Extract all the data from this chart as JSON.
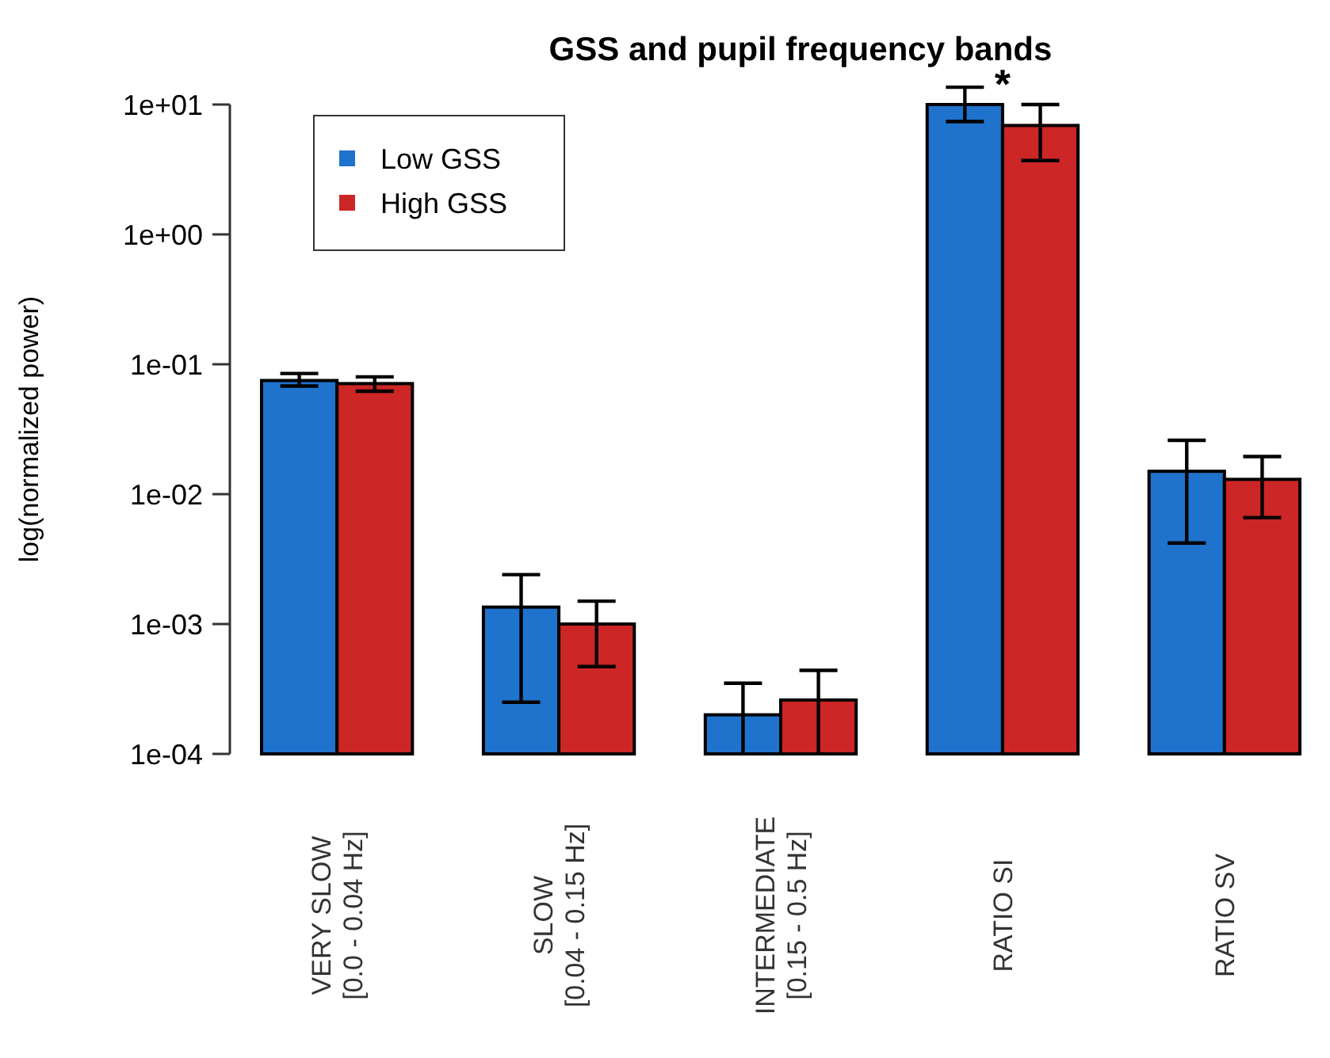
{
  "chart_data": {
    "type": "bar",
    "title": "GSS and pupil frequency bands",
    "ylabel": "log(normalized power)",
    "categories": [
      "VERY SLOW\n[0.0 - 0.04 Hz]",
      "SLOW\n[0.04 - 0.15 Hz]",
      "INTERMEDIATE\n[0.15 - 0.5 Hz]",
      "RATIO SI",
      "RATIO SV"
    ],
    "series": [
      {
        "name": "Low GSS",
        "color": "#1f73cc",
        "values": [
          0.075,
          0.00135,
          0.0002,
          10,
          0.015
        ],
        "errors": [
          [
            0.068,
            0.085
          ],
          [
            0.00025,
            0.0024
          ],
          [
            0.0001,
            0.00035
          ],
          [
            7.4,
            13.6
          ],
          [
            0.0042,
            0.026
          ]
        ]
      },
      {
        "name": "High GSS",
        "color": "#cc2626",
        "values": [
          0.071,
          0.001,
          0.00026,
          6.9,
          0.013
        ],
        "errors": [
          [
            0.062,
            0.08
          ],
          [
            0.00047,
            0.0015
          ],
          [
            0.0001,
            0.00044
          ],
          [
            3.7,
            10
          ],
          [
            0.0066,
            0.0195
          ]
        ]
      }
    ],
    "log": true,
    "ylim": [
      0.0001,
      10
    ],
    "yticks": [
      {
        "value": 0.0001,
        "label": "1e-04"
      },
      {
        "value": 0.001,
        "label": "1e-03"
      },
      {
        "value": 0.01,
        "label": "1e-02"
      },
      {
        "value": 0.1,
        "label": "1e-01"
      },
      {
        "value": 1,
        "label": "1e+00"
      },
      {
        "value": 10,
        "label": "1e+01"
      }
    ],
    "legend": "top left",
    "grid": false,
    "annotations": [
      "*"
    ]
  }
}
